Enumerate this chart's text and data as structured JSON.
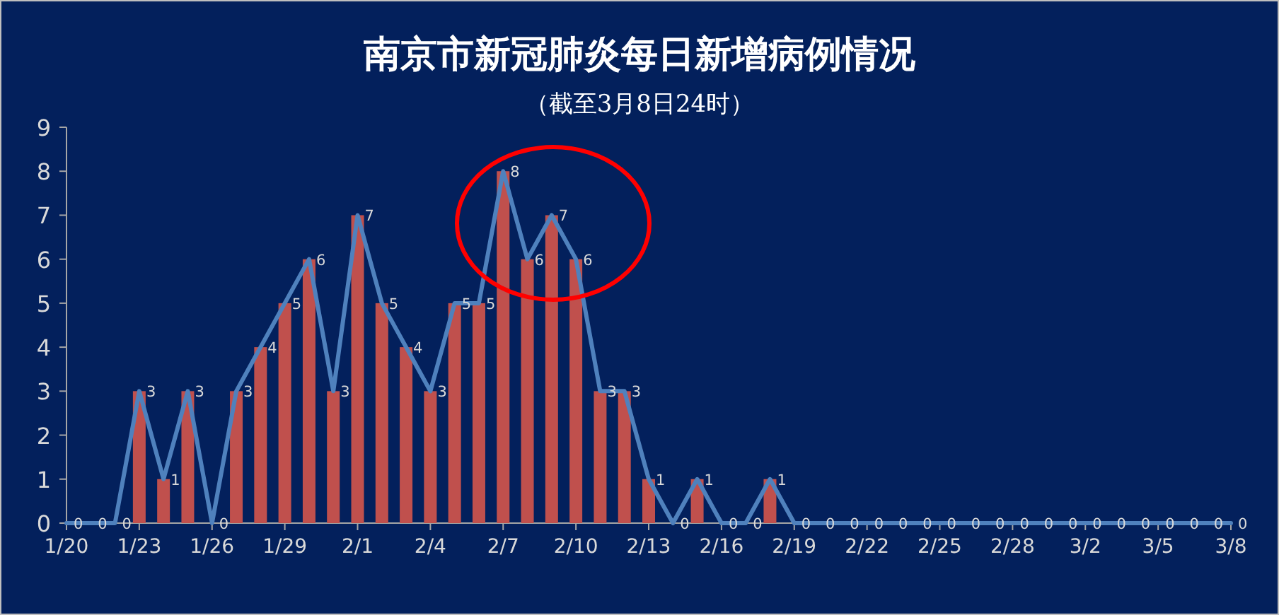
{
  "chart_data": {
    "type": "bar",
    "title": "南京市新冠肺炎每日新增病例情况",
    "subtitle": "（截至3月8日24时）",
    "categories": [
      "1/20",
      null,
      null,
      "1/23",
      null,
      null,
      "1/26",
      null,
      null,
      "1/29",
      null,
      null,
      "2/1",
      null,
      null,
      "2/4",
      null,
      null,
      "2/7",
      null,
      null,
      "2/10",
      null,
      null,
      "2/13",
      null,
      null,
      "2/16",
      null,
      null,
      "2/19",
      null,
      null,
      "2/22",
      null,
      null,
      "2/25",
      null,
      null,
      "2/28",
      null,
      null,
      "3/2",
      null,
      null,
      "3/5",
      null,
      null,
      "3/8"
    ],
    "series": [
      {
        "color": "#c0504d",
        "values": [
          0,
          0,
          0,
          3,
          1,
          3,
          0,
          3,
          4,
          5,
          6,
          3,
          7,
          5,
          4,
          3,
          5,
          5,
          8,
          6,
          7,
          6,
          3,
          3,
          1,
          0,
          1,
          0,
          0,
          1,
          0,
          0,
          0,
          0,
          0,
          0,
          0,
          0,
          0,
          0,
          0,
          0,
          0,
          0,
          0,
          0,
          0,
          0,
          0
        ]
      },
      {
        "type": "line",
        "color": "#4f81bd",
        "data_labels": true,
        "values": [
          0,
          0,
          0,
          3,
          1,
          3,
          0,
          3,
          4,
          5,
          6,
          3,
          7,
          5,
          4,
          3,
          5,
          5,
          8,
          6,
          7,
          6,
          3,
          3,
          1,
          0,
          1,
          0,
          0,
          1,
          0,
          0,
          0,
          0,
          0,
          0,
          0,
          0,
          0,
          0,
          0,
          0,
          0,
          0,
          0,
          0,
          0,
          0,
          0
        ]
      }
    ],
    "ylim": [
      0,
      9
    ],
    "yticks": [
      0,
      1,
      2,
      3,
      4,
      5,
      6,
      7,
      8,
      9
    ]
  }
}
